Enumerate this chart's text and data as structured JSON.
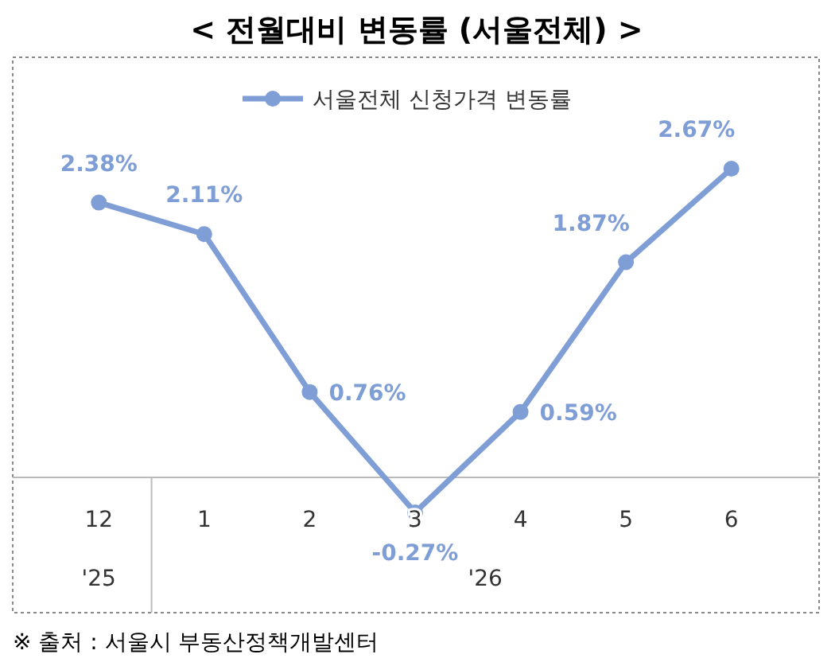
{
  "chart_data": {
    "type": "line",
    "title": "< 전월대비 변동률 (서울전체) >",
    "categories": [
      "12",
      "1",
      "2",
      "3",
      "4",
      "5",
      "6"
    ],
    "series": [
      {
        "name": "서울전체 신청가격 변동률",
        "color": "#7f9ed6",
        "values": [
          2.38,
          2.11,
          0.76,
          -0.27,
          0.59,
          1.87,
          2.67
        ],
        "value_labels": [
          "2.38%",
          "2.11%",
          "0.76%",
          "-0.27%",
          "0.59%",
          "1.87%",
          "2.67%"
        ]
      }
    ],
    "marker": "circle",
    "legend": "top",
    "annotations": [
      "'25",
      "'26",
      "※ 출처 : 서울시 부동산정책개발센터"
    ]
  }
}
